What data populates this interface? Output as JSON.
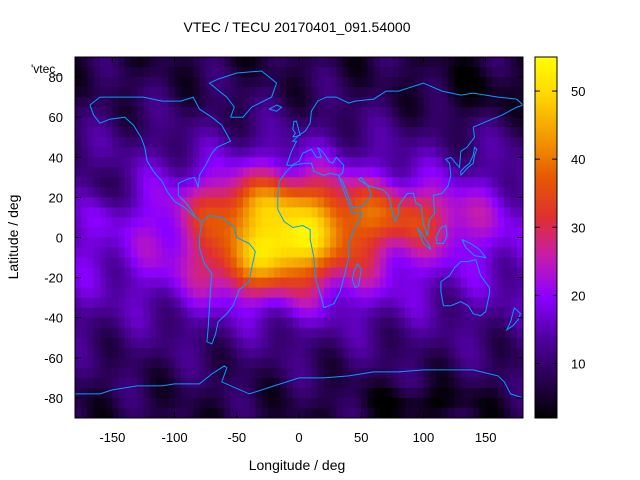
{
  "chart_data": {
    "type": "heatmap",
    "title": "VTEC / TECU 20170401_091.54000",
    "xlabel": "Longitude / deg",
    "ylabel": "Latitude / deg",
    "series_label": "'vtec_",
    "xlim": [
      -180,
      180
    ],
    "ylim": [
      -90,
      90
    ],
    "xticks": [
      -150,
      -100,
      -50,
      0,
      50,
      100,
      150
    ],
    "yticks": [
      -80,
      -60,
      -40,
      -20,
      0,
      20,
      40,
      60,
      80
    ],
    "colorbar": {
      "range": [
        2,
        55
      ],
      "ticks": [
        10,
        20,
        30,
        40,
        50
      ]
    },
    "peak": {
      "lon": -10,
      "lat": -5,
      "value": 53
    },
    "coastline_color": "#00a0ff",
    "palette": [
      "#000000",
      "#2a0055",
      "#5000a0",
      "#8a00ff",
      "#c41cb0",
      "#e03030",
      "#e65a00",
      "#f29a00",
      "#ffd400",
      "#ffff00"
    ]
  }
}
